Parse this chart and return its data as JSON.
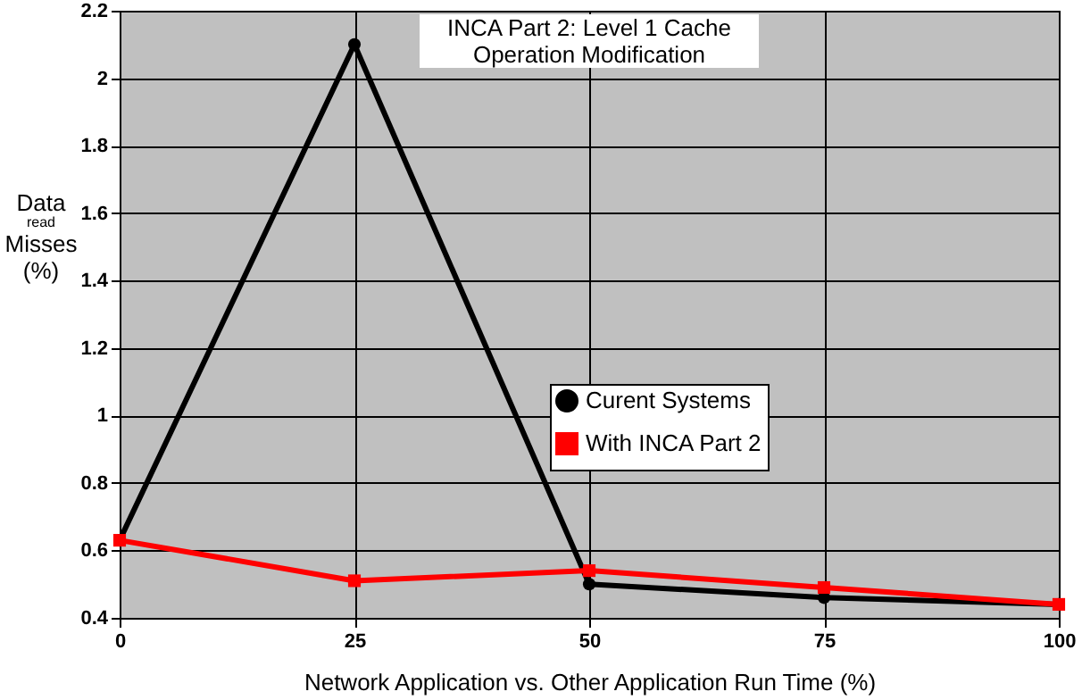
{
  "chart_data": {
    "type": "line",
    "title": "INCA Part 2: Level 1 Cache\nOperation Modification",
    "xlabel": "Network Application vs. Other Application Run Time (%)",
    "ylabel": "Data$_{read}$ Misses (%)",
    "x": [
      0,
      25,
      50,
      75,
      100
    ],
    "series": [
      {
        "name": "Curent Systems",
        "color": "#000000",
        "marker": "circle",
        "values": [
          0.63,
          2.1,
          0.5,
          0.46,
          0.44
        ]
      },
      {
        "name": "With INCA Part 2",
        "color": "#ff0000",
        "marker": "square",
        "values": [
          0.63,
          0.51,
          0.54,
          0.49,
          0.44
        ]
      }
    ],
    "xlim": [
      0,
      100
    ],
    "xticks": [
      0,
      25,
      50,
      75,
      100
    ],
    "ylim": [
      0.4,
      2.2
    ],
    "yticks": [
      0.4,
      0.6,
      0.8,
      1,
      1.2,
      1.4,
      1.6,
      1.8,
      2,
      2.2
    ],
    "grid": true,
    "legend": "right",
    "line_style": "solid"
  }
}
